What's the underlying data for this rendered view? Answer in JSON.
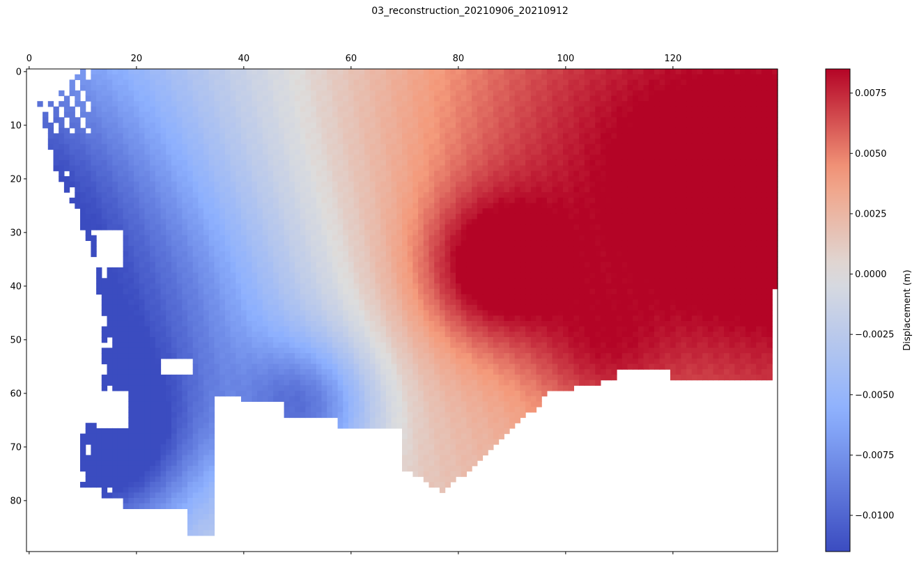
{
  "figure": {
    "title": "03_reconstruction_20210906_20210912"
  },
  "chart_data": {
    "type": "heatmap",
    "title": "03_reconstruction_20210906_20210912",
    "xlabel": "",
    "ylabel": "",
    "x_range": [
      -0.5,
      139.5
    ],
    "y_range": [
      89.5,
      -0.5
    ],
    "x_ticks": [
      0,
      20,
      40,
      60,
      80,
      100,
      120
    ],
    "x_tick_labels": [
      "0",
      "20",
      "40",
      "60",
      "80",
      "100",
      "120"
    ],
    "x_axis_position": "top",
    "y_ticks": [
      0,
      10,
      20,
      30,
      40,
      50,
      60,
      70,
      80
    ],
    "y_tick_labels": [
      "0",
      "10",
      "20",
      "30",
      "40",
      "50",
      "60",
      "70",
      "80"
    ],
    "grid": false,
    "colormap": "coolwarm",
    "colors": {
      "low": "#3b4cc0",
      "mid": "#dddddd",
      "high": "#b40426",
      "nodata": "#ffffff"
    },
    "colorbar": {
      "label": "Displacement (m)",
      "range": [
        -0.0115,
        0.0085
      ],
      "ticks": [
        -0.01,
        -0.0075,
        -0.005,
        -0.0025,
        0.0,
        0.0025,
        0.005,
        0.0075
      ],
      "tick_labels": [
        "−0.0100",
        "−0.0075",
        "−0.0050",
        "−0.0025",
        "0.0000",
        "0.0025",
        "0.0050",
        "0.0075"
      ]
    },
    "field_features": [
      {
        "description": "western negative lobe (blue)",
        "x": 20,
        "y": 55,
        "value": -0.009
      },
      {
        "description": "southwest peak negative",
        "x": 14,
        "y": 70,
        "value": -0.0105
      },
      {
        "description": "southern negative tongue",
        "x": 52,
        "y": 62,
        "value": -0.0095
      },
      {
        "description": "central positive peak",
        "x": 86,
        "y": 37,
        "value": 0.0085
      },
      {
        "description": "northeast positive plateau",
        "x": 115,
        "y": 10,
        "value": 0.0055
      },
      {
        "description": "eastern positive",
        "x": 135,
        "y": 30,
        "value": 0.006
      },
      {
        "description": "south-central positive",
        "x": 106,
        "y": 53,
        "value": 0.0055
      }
    ]
  }
}
